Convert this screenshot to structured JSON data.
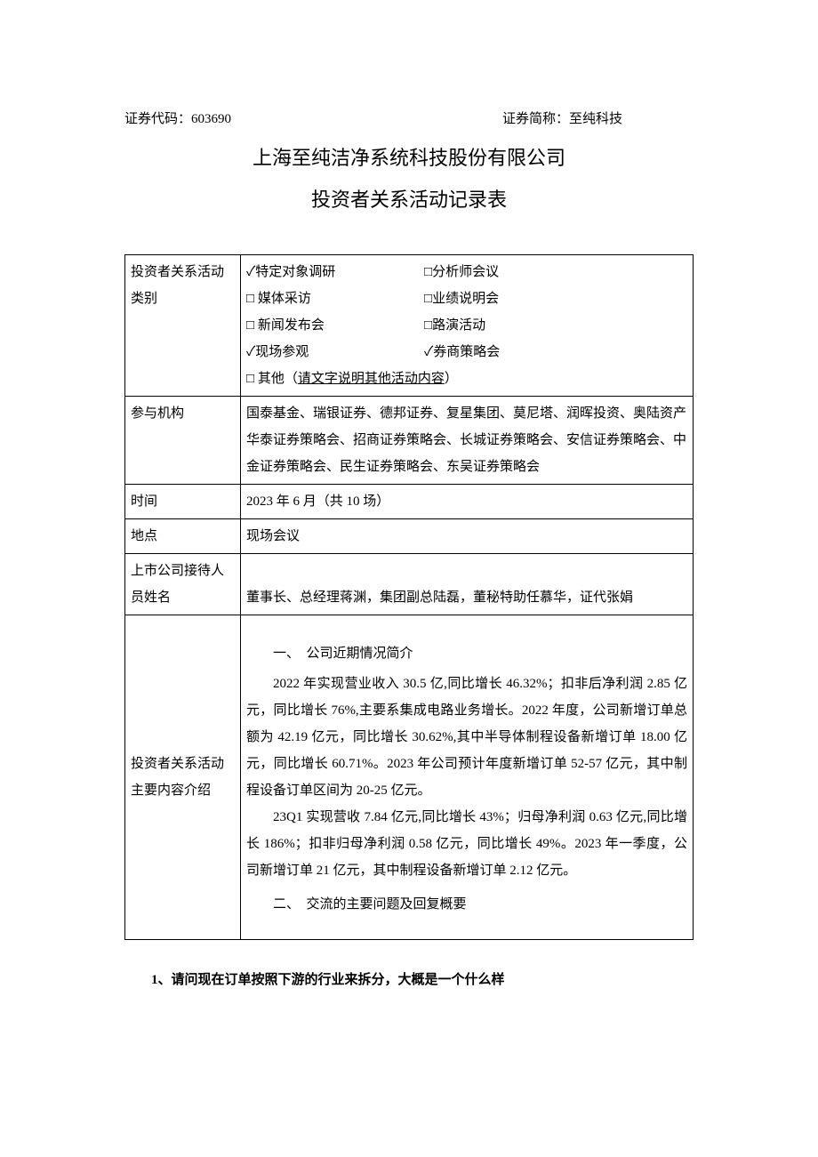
{
  "header": {
    "stock_code_label": "证券代码：",
    "stock_code": "603690",
    "stock_name_label": "证券简称：",
    "stock_name": "至纯科技"
  },
  "title": {
    "main": "上海至纯洁净系统科技股份有限公司",
    "sub": "投资者关系活动记录表"
  },
  "rows": {
    "activity_type": {
      "label": "投资者关系活动类别",
      "options": {
        "specific_research": {
          "checked": true,
          "label": "特定对象调研"
        },
        "analyst_meeting": {
          "checked": false,
          "label": "分析师会议"
        },
        "media_interview": {
          "checked": false,
          "label": "媒体采访"
        },
        "results_meeting": {
          "checked": false,
          "label": "业绩说明会"
        },
        "press_conference": {
          "checked": false,
          "label": "新闻发布会"
        },
        "roadshow": {
          "checked": false,
          "label": "路演活动"
        },
        "site_visit": {
          "checked": true,
          "label": "现场参观"
        },
        "broker_strategy": {
          "checked": true,
          "label": "券商策略会"
        },
        "other": {
          "checked": false,
          "label": "其他（",
          "hint": "请文字说明其他活动内容",
          "suffix": "）"
        }
      }
    },
    "participants": {
      "label": "参与机构",
      "value_line1": "国泰基金、瑞银证券、德邦证券、复星集团、莫尼塔、润晖投资、奥陆资产",
      "value_line2": "华泰证券策略会、招商证券策略会、长城证券策略会、安信证券策略会、中金证券策略会、民生证券策略会、东吴证券策略会"
    },
    "time": {
      "label": "时间",
      "value": "2023 年 6 月（共 10 场）"
    },
    "location": {
      "label": "地点",
      "value": "现场会议"
    },
    "reception": {
      "label": "上市公司接待人员姓名",
      "value": "董事长、总经理蒋渊，集团副总陆磊，董秘特助任慕华，证代张娟"
    },
    "content": {
      "label": "投资者关系活动主要内容介绍",
      "section1_title": "一、　公司近期情况简介",
      "section1_para1": "2022 年实现营业收入 30.5 亿,同比增长 46.32%；扣非后净利润 2.85 亿元，同比增长 76%,主要系集成电路业务增长。2022 年度，公司新增订单总额为 42.19 亿元，同比增长 30.62%,其中半导体制程设备新增订单 18.00 亿元，同比增长 60.71%。2023 年公司预计年度新增订单 52-57 亿元，其中制程设备订单区间为 20-25 亿元。",
      "section1_para2": "23Q1 实现营收 7.84 亿元,同比增长 43%；归母净利润 0.63 亿元,同比增长 186%；扣非归母净利润 0.58 亿元，同比增长 49%。2023 年一季度，公司新增订单 21 亿元，其中制程设备新增订单 2.12 亿元。",
      "section2_title": "二、　交流的主要问题及回复概要"
    }
  },
  "below": {
    "q1": "1、请问现在订单按照下游的行业来拆分，大概是一个什么样"
  },
  "checkbox": {
    "checked": "✓",
    "unchecked": "□"
  }
}
